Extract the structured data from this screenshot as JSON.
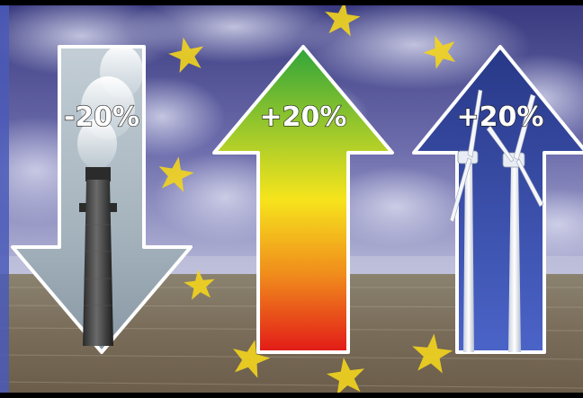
{
  "arrows": {
    "co2": {
      "label": "-20%",
      "direction": "down",
      "color_top": "#b8c6cf",
      "color_bottom": "#8e9fab"
    },
    "efficiency": {
      "label": "+20%",
      "direction": "up",
      "color_top": "#3fae3a",
      "color_mid": "#f4e11c",
      "color_bottom": "#e32018"
    },
    "renewables": {
      "label": "+20%",
      "direction": "up",
      "color_top": "#2e3f9a",
      "color_bottom": "#4a62c4"
    }
  },
  "colors": {
    "sky_top": "#3d3e86",
    "sky_bottom": "#a3a6cf",
    "field": "#7a6e5c",
    "star": "#f3d51e",
    "outline": "#ffffff"
  }
}
